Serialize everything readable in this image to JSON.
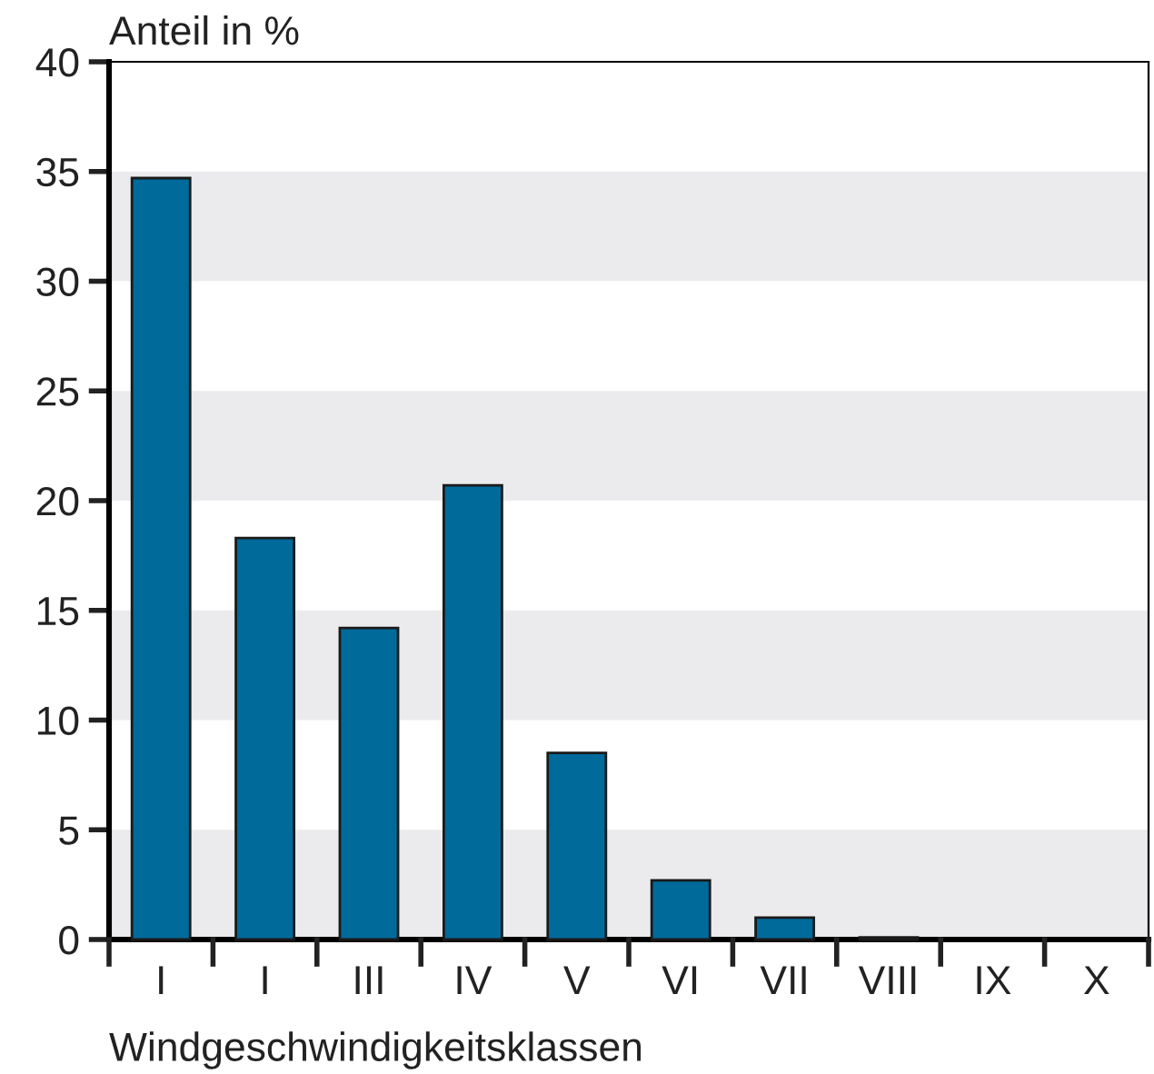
{
  "chart_data": {
    "type": "bar",
    "ylabel": "Anteil in %",
    "xlabel": "Windgeschwindigkeitsklassen",
    "categories": [
      "I",
      "I",
      "III",
      "IV",
      "V",
      "VI",
      "VII",
      "VIII",
      "IX",
      "X"
    ],
    "values": [
      34.7,
      18.3,
      14.2,
      20.7,
      8.5,
      2.7,
      1.0,
      0.1,
      0,
      0
    ],
    "color": "#006a9a",
    "ylim": [
      0,
      40
    ],
    "yticks": [
      0,
      5,
      10,
      15,
      20,
      25,
      30,
      35,
      40
    ],
    "grid": false,
    "bands": [
      {
        "axis": "y",
        "from": 0,
        "to": 5,
        "color": "#ebebed"
      },
      {
        "axis": "y",
        "from": 10,
        "to": 15,
        "color": "#ebebed"
      },
      {
        "axis": "y",
        "from": 20,
        "to": 25,
        "color": "#ebebed"
      },
      {
        "axis": "y",
        "from": 30,
        "to": 35,
        "color": "#ebebed"
      }
    ]
  }
}
